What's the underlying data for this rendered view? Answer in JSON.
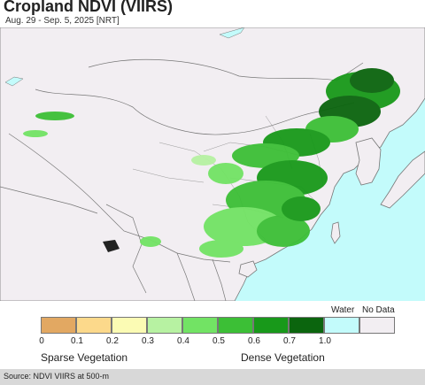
{
  "header": {
    "title": "Cropland NDVI (VIIRS)",
    "subtitle": "Aug. 29 - Sep. 5, 2025 [NRT]"
  },
  "colors": {
    "ocean": "#c3fbfb",
    "land": "#f2eef2",
    "border": "#777777",
    "crop_light": "#7ddc6e",
    "crop_mid": "#2fa324",
    "crop_dense": "#0a7a0a"
  },
  "legend": {
    "swatches": [
      {
        "color": "#e2a862"
      },
      {
        "color": "#fcd98b"
      },
      {
        "color": "#fbfbb4"
      },
      {
        "color": "#b7f2a2"
      },
      {
        "color": "#72e364"
      },
      {
        "color": "#3cbf36"
      },
      {
        "color": "#18991a"
      },
      {
        "color": "#0b650e"
      },
      {
        "color": "#c3fbfb"
      },
      {
        "color": "#f2eef2"
      }
    ],
    "ticks": [
      "0",
      "0.1",
      "0.2",
      "0.3",
      "0.4",
      "0.5",
      "0.6",
      "0.7",
      "1.0"
    ],
    "water_label": "Water",
    "nodata_label": "No Data",
    "sparse_label": "Sparse Vegetation",
    "dense_label": "Dense Vegetation"
  },
  "footer": {
    "source": "Source: NDVI VIIRS at 500-m"
  }
}
